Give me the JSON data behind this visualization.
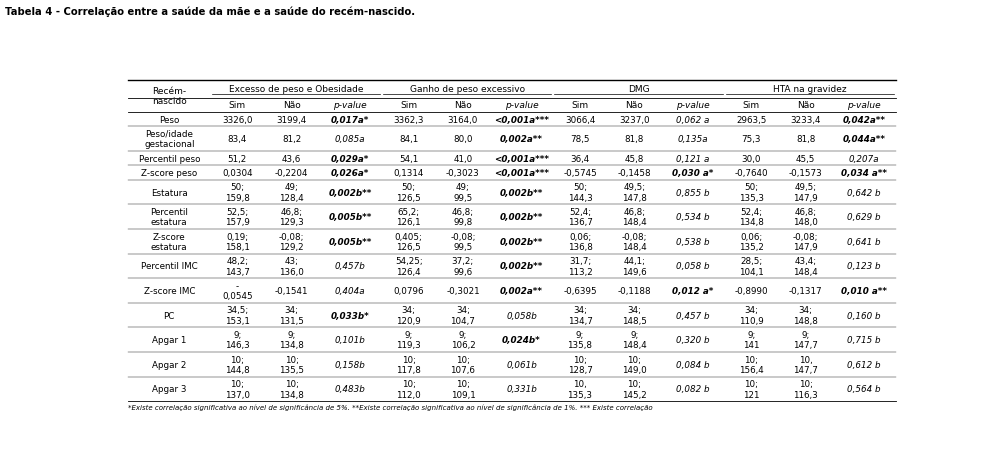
{
  "title": "Tabela 4 - Correlação entre a saúde da mãe e a saúde do recém-nascido.",
  "group_labels": [
    "Excesso de peso e Obesidade",
    "Ganho de peso excessivo",
    "DMG",
    "HTA na gravidez"
  ],
  "sub_headers": [
    "Sim",
    "Não",
    "p-value",
    "Sim",
    "Não",
    "p-value",
    "Sim",
    "Não",
    "p-value",
    "Sim",
    "Não",
    "p-value"
  ],
  "rows": [
    {
      "label": "Peso",
      "label_lines": 1,
      "values": [
        "3326,0",
        "3199,4",
        "0,017a*",
        "3362,3",
        "3164,0",
        "<0,001a***",
        "3066,4",
        "3237,0",
        "0,062 a",
        "2963,5",
        "3233,4",
        "0,042a**"
      ],
      "bold_cols": [
        2,
        5,
        11
      ]
    },
    {
      "label": "Peso/idade\ngestacional",
      "label_lines": 2,
      "values": [
        "83,4",
        "81,2",
        "0,085a",
        "84,1",
        "80,0",
        "0,002a**",
        "78,5",
        "81,8",
        "0,135a",
        "75,3",
        "81,8",
        "0,044a**"
      ],
      "bold_cols": [
        5,
        11
      ]
    },
    {
      "label": "Percentil peso",
      "label_lines": 1,
      "values": [
        "51,2",
        "43,6",
        "0,029a*",
        "54,1",
        "41,0",
        "<0,001a***",
        "36,4",
        "45,8",
        "0,121 a",
        "30,0",
        "45,5",
        "0,207a"
      ],
      "bold_cols": [
        2,
        5
      ]
    },
    {
      "label": "Z-score peso",
      "label_lines": 1,
      "values": [
        "0,0304",
        "-0,2204",
        "0,026a*",
        "0,1314",
        "-0,3023",
        "<0,001a***",
        "-0,5745",
        "-0,1458",
        "0,030 a*",
        "-0,7640",
        "-0,1573",
        "0,034 a**"
      ],
      "bold_cols": [
        2,
        5,
        8,
        11
      ]
    },
    {
      "label": "Estatura",
      "label_lines": 1,
      "values": [
        "50;\n159,8",
        "49;\n128,4",
        "0,002b**",
        "50;\n126,5",
        "49;\n99,5",
        "0,002b**",
        "50;\n144,3",
        "49,5;\n147,8",
        "0,855 b",
        "50;\n135,3",
        "49,5;\n147,9",
        "0,642 b"
      ],
      "bold_cols": [
        2,
        5
      ]
    },
    {
      "label": "Percentil\nestatura",
      "label_lines": 2,
      "values": [
        "52,5;\n157,9",
        "46,8;\n129,3",
        "0,005b**",
        "65,2;\n126,1",
        "46,8;\n99,8",
        "0,002b**",
        "52,4;\n136,7",
        "46,8;\n148,4",
        "0,534 b",
        "52,4;\n134,8",
        "46,8;\n148,0",
        "0,629 b"
      ],
      "bold_cols": [
        2,
        5
      ]
    },
    {
      "label": "Z-score\nestatura",
      "label_lines": 2,
      "values": [
        "0,19;\n158,1",
        "-0,08;\n129,2",
        "0,005b**",
        "0,405;\n126,5",
        "-0,08;\n99,5",
        "0,002b**",
        "0,06;\n136,8",
        "-0,08;\n148,4",
        "0,538 b",
        "0,06;\n135,2",
        "-0,08;\n147,9",
        "0,641 b"
      ],
      "bold_cols": [
        2,
        5
      ]
    },
    {
      "label": "Percentil IMC",
      "label_lines": 1,
      "values": [
        "48,2;\n143,7",
        "43;\n136,0",
        "0,457b",
        "54,25;\n126,4",
        "37,2;\n99,6",
        "0,002b**",
        "31,7;\n113,2",
        "44,1;\n149,6",
        "0,058 b",
        "28,5;\n104,1",
        "43,4;\n148,4",
        "0,123 b"
      ],
      "bold_cols": [
        5
      ]
    },
    {
      "label": "Z-score IMC",
      "label_lines": 1,
      "values": [
        "-\n0,0545",
        "-0,1541",
        "0,404a",
        "0,0796",
        "-0,3021",
        "0,002a**",
        "-0,6395",
        "-0,1188",
        "0,012 a*",
        "-0,8990",
        "-0,1317",
        "0,010 a**"
      ],
      "bold_cols": [
        5,
        8,
        11
      ]
    },
    {
      "label": "PC",
      "label_lines": 1,
      "values": [
        "34,5;\n153,1",
        "34;\n131,5",
        "0,033b*",
        "34;\n120,9",
        "34;\n104,7",
        "0,058b",
        "34;\n134,7",
        "34;\n148,5",
        "0,457 b",
        "34;\n110,9",
        "34;\n148,8",
        "0,160 b"
      ],
      "bold_cols": [
        2
      ]
    },
    {
      "label": "Apgar 1",
      "label_lines": 1,
      "values": [
        "9;\n146,3",
        "9;\n134,8",
        "0,101b",
        "9;\n119,3",
        "9;\n106,2",
        "0,024b*",
        "9;\n135,8",
        "9;\n148,4",
        "0,320 b",
        "9;\n141",
        "9;\n147,7",
        "0,715 b"
      ],
      "bold_cols": [
        5
      ]
    },
    {
      "label": "Apgar 2",
      "label_lines": 1,
      "values": [
        "10;\n144,8",
        "10;\n135,5",
        "0,158b",
        "10;\n117,8",
        "10;\n107,6",
        "0,061b",
        "10;\n128,7",
        "10;\n149,0",
        "0,084 b",
        "10;\n156,4",
        "10,\n147,7",
        "0,612 b"
      ],
      "bold_cols": []
    },
    {
      "label": "Apgar 3",
      "label_lines": 1,
      "values": [
        "10;\n137,0",
        "10;\n134,8",
        "0,483b",
        "10;\n112,0",
        "10;\n109,1",
        "0,331b",
        "10,\n135,3",
        "10;\n145,2",
        "0,082 b",
        "10;\n121",
        "10;\n116,3",
        "0,564 b"
      ],
      "bold_cols": []
    }
  ],
  "footer": "*Existe correlação significativa ao nível de significância de 5%. **Existe correlação significativa ao nível de significância de 1%. *** Existe correlação",
  "bg_color": "#ffffff",
  "line_color": "#000000"
}
